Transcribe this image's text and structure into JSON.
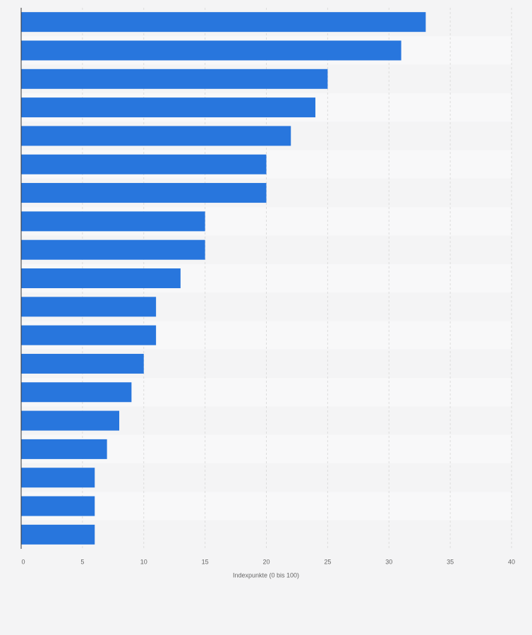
{
  "chart_data": {
    "type": "barh",
    "x_label": "Indexpunkte (0 bis 100)",
    "categories": [
      null,
      null,
      null,
      null,
      null,
      null,
      null,
      null,
      null,
      null,
      null,
      null,
      null,
      null,
      null,
      null,
      null,
      null,
      null
    ],
    "values": [
      33,
      31,
      25,
      24,
      22,
      20,
      20,
      15,
      15,
      13,
      11,
      11,
      10,
      9,
      8,
      7,
      6,
      6,
      6
    ],
    "color": "#2876dd",
    "xlim": [
      0,
      40
    ],
    "xticks": [
      0,
      5,
      10,
      15,
      20,
      25,
      30,
      35,
      40
    ],
    "grid": true
  }
}
